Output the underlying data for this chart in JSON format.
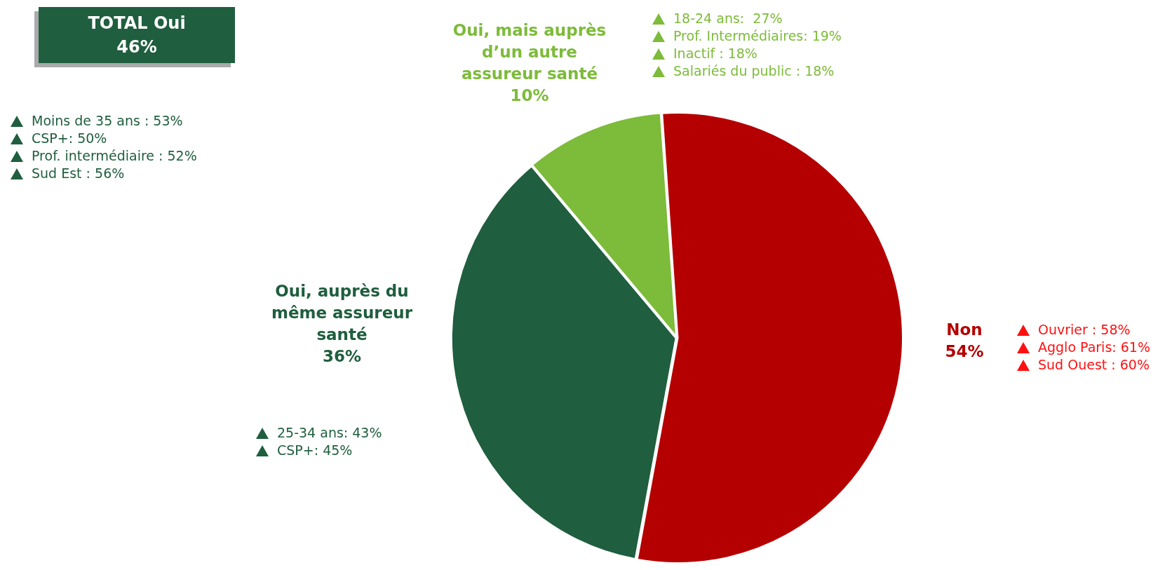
{
  "chart_data": {
    "type": "pie",
    "categories": [
      "Non",
      "Oui, auprès du même assureur santé",
      "Oui, mais auprès d’un autre assureur santé"
    ],
    "values": [
      54,
      36,
      10
    ],
    "value_labels": [
      "54%",
      "36%",
      "10%"
    ],
    "colors": [
      "#b40000",
      "#1f5e3e",
      "#7dbb3a"
    ],
    "legend": false,
    "annotations": [
      "TOTAL Oui\n46%",
      "Moins de 35 ans : 53%",
      "CSP+: 50%",
      "Prof. intermédiaire : 52%",
      "Sud Est : 56%",
      "18-24 ans:  27%",
      "Prof. Intermédiaires: 19%",
      "Inactif : 18%",
      "Salariés du public : 18%",
      "Ouvrier : 58%",
      "Agglo Paris: 61%",
      "Sud Ouest : 60%",
      "25-34 ans: 43%",
      "CSP+: 45%"
    ]
  }
}
